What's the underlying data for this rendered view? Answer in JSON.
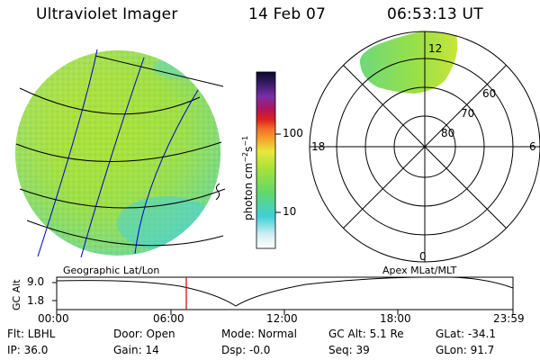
{
  "header": {
    "instrument": "Ultraviolet Imager",
    "date": "14 Feb 07",
    "time": "06:53:13 UT"
  },
  "colorbar": {
    "unit_label": "photon cm",
    "unit_sup1": "−2",
    "unit_mid": "s",
    "unit_sup2": "−1",
    "ticks": [
      "100",
      "10"
    ],
    "log_scale": true
  },
  "polar_plot": {
    "mlt_labels": {
      "top": "12",
      "left": "18",
      "right": "6",
      "bottom": "0"
    },
    "lat_labels": [
      "60",
      "70",
      "80"
    ]
  },
  "timeline": {
    "ylabel": "GC Alt",
    "ytick_top": "9.0",
    "ytick_bottom": "1.8",
    "left_title": "Geographic Lat/Lon",
    "right_title": "Apex  MLat/MLT",
    "x_ticks": [
      "00:00",
      "06:00",
      "12:00",
      "18:00",
      "23:59"
    ],
    "current_time_marker_color": "#cc0000"
  },
  "status": {
    "filter": "Flt: LBHL",
    "ip": "IP: 36.0",
    "door": "Door: Open",
    "gain": "Gain: 14",
    "mode": "Mode: Normal",
    "dsp": "Dsp:   -0.0",
    "gc_alt": "GC Alt: 5.1 Re",
    "seq": "Seq: 39",
    "glat": "GLat: -34.1",
    "glon": "GLon:  91.7"
  }
}
